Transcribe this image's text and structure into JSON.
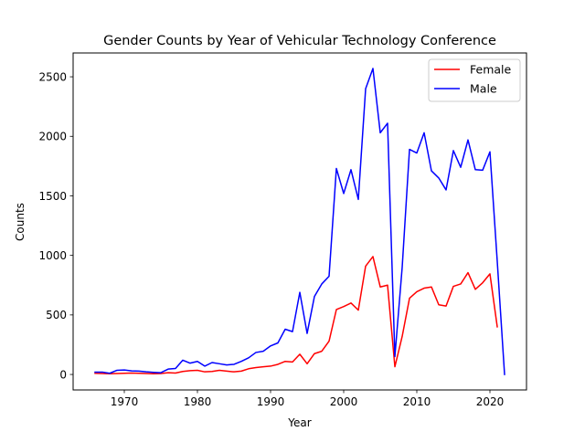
{
  "chart_data": {
    "type": "line",
    "title": "Gender Counts by Year of Vehicular Technology Conference",
    "xlabel": "Year",
    "ylabel": "Counts",
    "xlim": [
      1963,
      2025
    ],
    "ylim": [
      -130,
      2700
    ],
    "x_ticks": [
      1970,
      1980,
      1990,
      2000,
      2010,
      2020
    ],
    "y_ticks": [
      0,
      500,
      1000,
      1500,
      2000,
      2500
    ],
    "grid": false,
    "legend_position": "top-right",
    "series": [
      {
        "name": "Female",
        "color": "#ff0000",
        "points": [
          [
            1966,
            10
          ],
          [
            1967,
            8
          ],
          [
            1968,
            6
          ],
          [
            1969,
            8
          ],
          [
            1970,
            10
          ],
          [
            1971,
            12
          ],
          [
            1972,
            10
          ],
          [
            1973,
            8
          ],
          [
            1974,
            6
          ],
          [
            1975,
            8
          ],
          [
            1976,
            15
          ],
          [
            1977,
            12
          ],
          [
            1978,
            25
          ],
          [
            1979,
            32
          ],
          [
            1980,
            35
          ],
          [
            1981,
            22
          ],
          [
            1982,
            25
          ],
          [
            1983,
            35
          ],
          [
            1984,
            28
          ],
          [
            1985,
            22
          ],
          [
            1986,
            28
          ],
          [
            1987,
            48
          ],
          [
            1988,
            58
          ],
          [
            1989,
            65
          ],
          [
            1990,
            70
          ],
          [
            1991,
            85
          ],
          [
            1992,
            110
          ],
          [
            1993,
            105
          ],
          [
            1994,
            170
          ],
          [
            1995,
            90
          ],
          [
            1996,
            175
          ],
          [
            1997,
            195
          ],
          [
            1998,
            280
          ],
          [
            1999,
            545
          ],
          [
            2000,
            570
          ],
          [
            2001,
            600
          ],
          [
            2002,
            540
          ],
          [
            2003,
            910
          ],
          [
            2004,
            990
          ],
          [
            2005,
            735
          ],
          [
            2006,
            750
          ],
          [
            2007,
            65
          ],
          [
            2008,
            320
          ],
          [
            2009,
            640
          ],
          [
            2010,
            695
          ],
          [
            2011,
            725
          ],
          [
            2012,
            735
          ],
          [
            2013,
            585
          ],
          [
            2014,
            575
          ],
          [
            2015,
            740
          ],
          [
            2016,
            760
          ],
          [
            2017,
            855
          ],
          [
            2018,
            715
          ],
          [
            2019,
            770
          ],
          [
            2020,
            845
          ],
          [
            2021,
            400
          ]
        ]
      },
      {
        "name": "Male",
        "color": "#0000ff",
        "points": [
          [
            1966,
            20
          ],
          [
            1967,
            20
          ],
          [
            1968,
            10
          ],
          [
            1969,
            35
          ],
          [
            1970,
            38
          ],
          [
            1971,
            30
          ],
          [
            1972,
            28
          ],
          [
            1973,
            22
          ],
          [
            1974,
            18
          ],
          [
            1975,
            15
          ],
          [
            1976,
            45
          ],
          [
            1977,
            50
          ],
          [
            1978,
            120
          ],
          [
            1979,
            95
          ],
          [
            1980,
            110
          ],
          [
            1981,
            70
          ],
          [
            1982,
            100
          ],
          [
            1983,
            90
          ],
          [
            1984,
            80
          ],
          [
            1985,
            85
          ],
          [
            1986,
            110
          ],
          [
            1987,
            140
          ],
          [
            1988,
            185
          ],
          [
            1989,
            195
          ],
          [
            1990,
            240
          ],
          [
            1991,
            265
          ],
          [
            1992,
            380
          ],
          [
            1993,
            360
          ],
          [
            1994,
            690
          ],
          [
            1995,
            345
          ],
          [
            1996,
            655
          ],
          [
            1997,
            760
          ],
          [
            1998,
            825
          ],
          [
            1999,
            1730
          ],
          [
            2000,
            1520
          ],
          [
            2001,
            1720
          ],
          [
            2002,
            1470
          ],
          [
            2003,
            2400
          ],
          [
            2004,
            2570
          ],
          [
            2005,
            2030
          ],
          [
            2006,
            2110
          ],
          [
            2007,
            150
          ],
          [
            2008,
            900
          ],
          [
            2009,
            1890
          ],
          [
            2010,
            1860
          ],
          [
            2011,
            2030
          ],
          [
            2012,
            1710
          ],
          [
            2013,
            1650
          ],
          [
            2014,
            1550
          ],
          [
            2015,
            1880
          ],
          [
            2016,
            1740
          ],
          [
            2017,
            1970
          ],
          [
            2018,
            1720
          ],
          [
            2019,
            1715
          ],
          [
            2020,
            1870
          ],
          [
            2021,
            950
          ],
          [
            2022,
            0
          ]
        ]
      }
    ]
  }
}
